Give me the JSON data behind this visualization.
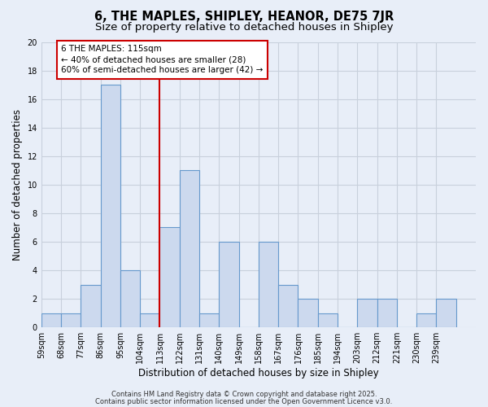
{
  "title": "6, THE MAPLES, SHIPLEY, HEANOR, DE75 7JR",
  "subtitle": "Size of property relative to detached houses in Shipley",
  "xlabel": "Distribution of detached houses by size in Shipley",
  "ylabel": "Number of detached properties",
  "bin_labels": [
    "59sqm",
    "68sqm",
    "77sqm",
    "86sqm",
    "95sqm",
    "104sqm",
    "113sqm",
    "122sqm",
    "131sqm",
    "140sqm",
    "149sqm",
    "158sqm",
    "167sqm",
    "176sqm",
    "185sqm",
    "194sqm",
    "203sqm",
    "212sqm",
    "221sqm",
    "230sqm",
    "239sqm"
  ],
  "bin_edges": [
    59,
    68,
    77,
    86,
    95,
    104,
    113,
    122,
    131,
    140,
    149,
    158,
    167,
    176,
    185,
    194,
    203,
    212,
    221,
    230,
    239,
    248
  ],
  "counts": [
    1,
    1,
    3,
    17,
    4,
    1,
    7,
    11,
    1,
    6,
    0,
    6,
    3,
    2,
    1,
    0,
    2,
    2,
    0,
    1,
    2
  ],
  "bar_color": "#ccd9ee",
  "bar_edge_color": "#6699cc",
  "reference_line_x": 113,
  "reference_line_color": "#cc0000",
  "ylim": [
    0,
    20
  ],
  "yticks": [
    0,
    2,
    4,
    6,
    8,
    10,
    12,
    14,
    16,
    18,
    20
  ],
  "annotation_title": "6 THE MAPLES: 115sqm",
  "annotation_line1": "← 40% of detached houses are smaller (28)",
  "annotation_line2": "60% of semi-detached houses are larger (42) →",
  "annotation_box_color": "#ffffff",
  "annotation_box_edge": "#cc0000",
  "footer1": "Contains HM Land Registry data © Crown copyright and database right 2025.",
  "footer2": "Contains public sector information licensed under the Open Government Licence v3.0.",
  "background_color": "#e8eef8",
  "grid_color": "#c8d0dc",
  "title_fontsize": 10.5,
  "subtitle_fontsize": 9.5,
  "axis_label_fontsize": 8.5,
  "tick_fontsize": 7,
  "annotation_fontsize": 7.5,
  "footer_fontsize": 6
}
